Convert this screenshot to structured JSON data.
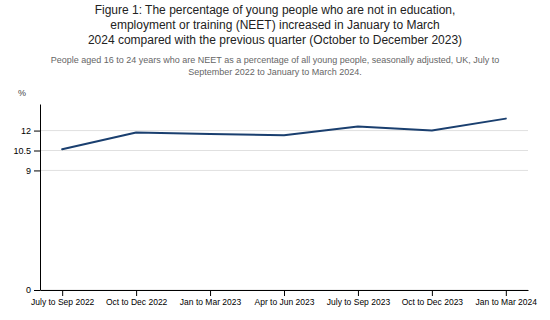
{
  "chart_data": {
    "type": "line",
    "title": [
      "Figure 1: The percentage of young people who are not in education,",
      "employment or training (NEET) increased in January to March",
      "2024 compared with the previous quarter (October to December 2023)"
    ],
    "subtitle": [
      "People aged 16 to 24 years who are NEET as a percentage of all young people, seasonally adjusted, UK, July to",
      "September 2022 to January to March 2024."
    ],
    "y_label": "%",
    "categories": [
      "July to Sep 2022",
      "Oct to Dec 2022",
      "Jan to Mar 2023",
      "Apr to Jun 2023",
      "July to Sep 2023",
      "Oct to Dec 2023",
      "Jan to Mar 2024"
    ],
    "values": [
      10.6,
      11.85,
      11.75,
      11.65,
      12.3,
      12.0,
      12.9
    ],
    "color": "#1a3f6f",
    "ylim": [
      0,
      14.0
    ],
    "yticks": [
      0,
      9,
      10.5,
      12
    ],
    "grid": true
  }
}
